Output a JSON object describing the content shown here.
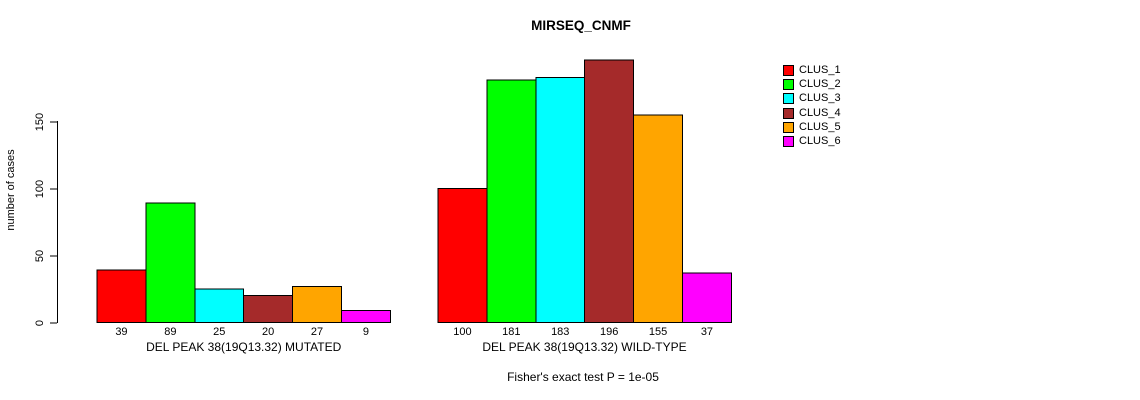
{
  "chart_data": {
    "type": "bar",
    "title": "MIRSEQ_CNMF",
    "ylabel": "number of cases",
    "xlabel": "",
    "yticks": [
      0,
      50,
      100,
      150
    ],
    "ylim": [
      0,
      150
    ],
    "grid": false,
    "legend_position": "right",
    "categories": [
      "DEL PEAK 38(19Q13.32) MUTATED",
      "DEL PEAK 38(19Q13.32) WILD-TYPE"
    ],
    "series": [
      {
        "name": "CLUS_1",
        "color": "#FF0000",
        "values": [
          39,
          100
        ]
      },
      {
        "name": "CLUS_2",
        "color": "#00FF00",
        "values": [
          89,
          181
        ]
      },
      {
        "name": "CLUS_3",
        "color": "#00FFFF",
        "values": [
          25,
          183
        ]
      },
      {
        "name": "CLUS_4",
        "color": "#A52A2A",
        "values": [
          20,
          196
        ]
      },
      {
        "name": "CLUS_5",
        "color": "#FFA500",
        "values": [
          27,
          155
        ]
      },
      {
        "name": "CLUS_6",
        "color": "#FF00FF",
        "values": [
          9,
          37
        ]
      }
    ],
    "footer": "Fisher's exact test P = 1e-05",
    "colors": {
      "bar_border": "#000000",
      "axis": "#000000",
      "background": "#FFFFFF"
    }
  }
}
